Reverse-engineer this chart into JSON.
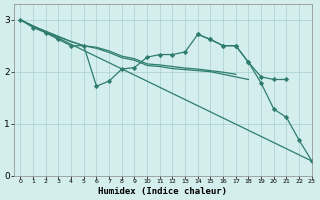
{
  "background_color": "#d4eeed",
  "grid_color": "#aacfcc",
  "line_color": "#2e7d6e",
  "xlabel": "Humidex (Indice chaleur)",
  "xlim": [
    -0.5,
    23
  ],
  "ylim": [
    0,
    3.3
  ],
  "yticks": [
    0,
    1,
    2,
    3
  ],
  "xtick_labels": [
    "0",
    "1",
    "2",
    "3",
    "4",
    "5",
    "6",
    "7",
    "8",
    "9",
    "10",
    "11",
    "12",
    "13",
    "14",
    "15",
    "16",
    "17",
    "18",
    "19",
    "20",
    "21",
    "22",
    "23"
  ],
  "lines": [
    {
      "x": [
        0,
        1,
        2,
        3,
        4,
        5,
        6,
        7,
        8,
        9,
        10,
        11,
        12,
        13,
        14,
        15,
        16,
        17,
        18,
        19,
        20,
        21
      ],
      "y": [
        3.0,
        2.85,
        2.75,
        2.62,
        2.5,
        2.5,
        1.72,
        1.82,
        2.05,
        2.08,
        2.28,
        2.33,
        2.33,
        2.38,
        2.72,
        2.62,
        2.5,
        2.5,
        2.18,
        1.9,
        1.85,
        1.85
      ],
      "marker": true
    },
    {
      "x": [
        0,
        23
      ],
      "y": [
        3.0,
        0.28
      ],
      "marker": false
    },
    {
      "x": [
        0,
        1,
        2,
        3,
        4,
        5,
        6,
        7,
        8,
        9,
        10,
        11,
        12,
        13,
        14,
        15,
        16,
        17,
        18
      ],
      "y": [
        3.0,
        2.87,
        2.77,
        2.67,
        2.58,
        2.5,
        2.45,
        2.37,
        2.27,
        2.22,
        2.12,
        2.1,
        2.06,
        2.04,
        2.02,
        2.0,
        1.95,
        1.9,
        1.85
      ],
      "marker": false
    },
    {
      "x": [
        0,
        1,
        2,
        3,
        4,
        5,
        6,
        7,
        8,
        9,
        10,
        11,
        12,
        13,
        14,
        15,
        16,
        17
      ],
      "y": [
        3.0,
        2.88,
        2.78,
        2.68,
        2.58,
        2.5,
        2.47,
        2.4,
        2.3,
        2.25,
        2.15,
        2.13,
        2.1,
        2.07,
        2.05,
        2.02,
        1.99,
        1.95
      ],
      "marker": false
    },
    {
      "x": [
        14,
        15,
        16,
        17,
        18,
        19,
        20,
        21,
        22,
        23
      ],
      "y": [
        2.72,
        2.62,
        2.5,
        2.5,
        2.18,
        1.78,
        1.28,
        1.12,
        0.68,
        0.28
      ],
      "marker": true
    }
  ]
}
